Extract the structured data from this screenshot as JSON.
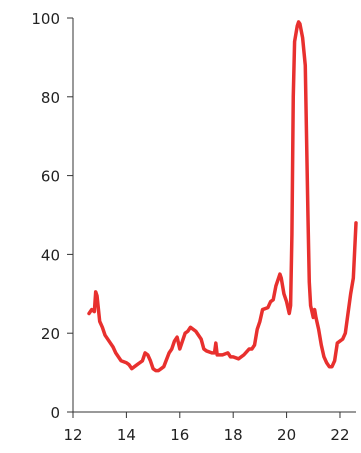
{
  "chart_data": {
    "type": "line",
    "title": "",
    "xlabel": "",
    "ylabel": "",
    "xlim": [
      12,
      22.6
    ],
    "ylim": [
      0,
      100
    ],
    "xticks": [
      12,
      14,
      16,
      18,
      20,
      22
    ],
    "yticks": [
      0,
      20,
      40,
      60,
      80,
      100
    ],
    "xtick_labels": [
      "12",
      "14",
      "16",
      "18",
      "20",
      "22"
    ],
    "ytick_labels": [
      "0",
      "20",
      "40",
      "60",
      "80",
      "100"
    ],
    "grid": false,
    "legend": "none",
    "series": [
      {
        "color": "#e8302e",
        "points": [
          [
            12.6,
            25
          ],
          [
            12.7,
            26
          ],
          [
            12.8,
            25.5
          ],
          [
            12.85,
            30.5
          ],
          [
            12.9,
            29.5
          ],
          [
            13.0,
            23
          ],
          [
            13.1,
            21.5
          ],
          [
            13.2,
            19.5
          ],
          [
            13.4,
            17.5
          ],
          [
            13.5,
            16.5
          ],
          [
            13.6,
            15
          ],
          [
            13.8,
            13
          ],
          [
            14.0,
            12.5
          ],
          [
            14.1,
            12
          ],
          [
            14.2,
            11
          ],
          [
            14.3,
            11.5
          ],
          [
            14.4,
            12
          ],
          [
            14.5,
            12.5
          ],
          [
            14.6,
            13
          ],
          [
            14.7,
            15
          ],
          [
            14.8,
            14.5
          ],
          [
            14.9,
            13
          ],
          [
            15.0,
            11
          ],
          [
            15.1,
            10.5
          ],
          [
            15.2,
            10.5
          ],
          [
            15.3,
            11
          ],
          [
            15.4,
            11.5
          ],
          [
            15.6,
            15
          ],
          [
            15.7,
            16
          ],
          [
            15.8,
            18
          ],
          [
            15.9,
            19
          ],
          [
            16.0,
            16
          ],
          [
            16.1,
            18
          ],
          [
            16.2,
            20
          ],
          [
            16.3,
            20.5
          ],
          [
            16.4,
            21.5
          ],
          [
            16.6,
            20.5
          ],
          [
            16.8,
            18.5
          ],
          [
            16.9,
            16
          ],
          [
            17.0,
            15.5
          ],
          [
            17.2,
            15
          ],
          [
            17.3,
            15
          ],
          [
            17.35,
            17.5
          ],
          [
            17.4,
            14.5
          ],
          [
            17.6,
            14.5
          ],
          [
            17.8,
            15
          ],
          [
            17.9,
            14
          ],
          [
            18.0,
            14
          ],
          [
            18.2,
            13.5
          ],
          [
            18.4,
            14.5
          ],
          [
            18.6,
            16
          ],
          [
            18.7,
            16
          ],
          [
            18.8,
            17
          ],
          [
            18.9,
            21
          ],
          [
            19.0,
            23
          ],
          [
            19.1,
            26
          ],
          [
            19.3,
            26.5
          ],
          [
            19.4,
            28
          ],
          [
            19.5,
            28.5
          ],
          [
            19.6,
            32
          ],
          [
            19.7,
            34
          ],
          [
            19.75,
            35
          ],
          [
            19.8,
            34
          ],
          [
            19.9,
            30
          ],
          [
            20.0,
            28
          ],
          [
            20.1,
            25
          ],
          [
            20.15,
            27
          ],
          [
            20.2,
            45
          ],
          [
            20.25,
            80
          ],
          [
            20.3,
            94
          ],
          [
            20.4,
            98
          ],
          [
            20.45,
            99
          ],
          [
            20.5,
            98.5
          ],
          [
            20.6,
            95
          ],
          [
            20.7,
            88
          ],
          [
            20.8,
            50
          ],
          [
            20.85,
            33
          ],
          [
            20.9,
            27
          ],
          [
            21.0,
            24
          ],
          [
            21.05,
            26
          ],
          [
            21.1,
            24
          ],
          [
            21.2,
            21
          ],
          [
            21.3,
            17
          ],
          [
            21.4,
            14
          ],
          [
            21.5,
            12.5
          ],
          [
            21.6,
            11.5
          ],
          [
            21.7,
            11.5
          ],
          [
            21.8,
            13
          ],
          [
            21.9,
            17.5
          ],
          [
            22.0,
            18
          ],
          [
            22.1,
            18.5
          ],
          [
            22.2,
            20
          ],
          [
            22.3,
            25
          ],
          [
            22.4,
            30
          ],
          [
            22.5,
            34
          ],
          [
            22.55,
            41
          ],
          [
            22.6,
            48
          ]
        ]
      }
    ]
  }
}
